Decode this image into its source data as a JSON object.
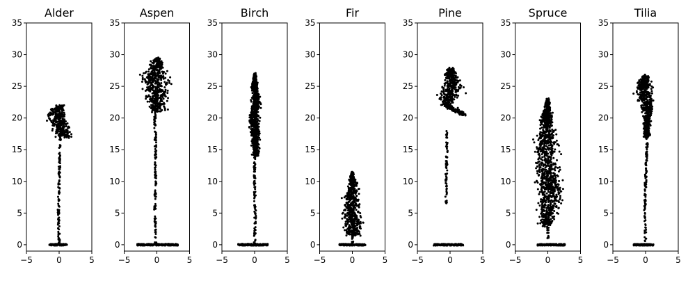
{
  "chart_data": [
    {
      "type": "scatter",
      "title": "Alder",
      "xlim": [
        -5,
        5
      ],
      "ylim": [
        -1,
        35
      ],
      "xticks": [
        -5,
        0,
        5
      ],
      "yticks": [
        0,
        5,
        10,
        15,
        20,
        25,
        30,
        35
      ],
      "point_color": "#000000",
      "profile": {
        "ground": {
          "x": [
            -1.5,
            1.2
          ],
          "y": 0
        },
        "trunk": [
          {
            "y": 0,
            "x": 0
          },
          {
            "y": 5,
            "x": -0.1
          },
          {
            "y": 10,
            "x": 0
          },
          {
            "y": 15,
            "x": 0.1
          },
          {
            "y": 17,
            "x": 0.2
          }
        ],
        "crown": [
          {
            "y": 17,
            "x": [
              -0.5,
              2.0
            ]
          },
          {
            "y": 18,
            "x": [
              -1.0,
              2.2
            ]
          },
          {
            "y": 19,
            "x": [
              -1.6,
              1.8
            ]
          },
          {
            "y": 20,
            "x": [
              -2.0,
              1.5
            ]
          },
          {
            "y": 21,
            "x": [
              -1.8,
              1.2
            ]
          },
          {
            "y": 22,
            "x": [
              -0.8,
              0.8
            ]
          }
        ]
      }
    },
    {
      "type": "scatter",
      "title": "Aspen",
      "xlim": [
        -5,
        5
      ],
      "ylim": [
        -1,
        35
      ],
      "xticks": [
        -5,
        0,
        5
      ],
      "yticks": [
        0,
        5,
        10,
        15,
        20,
        25,
        30,
        35
      ],
      "point_color": "#000000",
      "profile": {
        "ground": {
          "x": [
            -3.0,
            3.2
          ],
          "y": 0
        },
        "trunk": [
          {
            "y": 0,
            "x": -0.2
          },
          {
            "y": 5,
            "x": -0.3
          },
          {
            "y": 10,
            "x": -0.2
          },
          {
            "y": 15,
            "x": -0.2
          },
          {
            "y": 20,
            "x": -0.3
          },
          {
            "y": 22,
            "x": -0.3
          }
        ],
        "crown": [
          {
            "y": 21,
            "x": [
              -1.2,
              1.5
            ]
          },
          {
            "y": 23,
            "x": [
              -2.3,
              2.2
            ]
          },
          {
            "y": 25,
            "x": [
              -2.5,
              2.3
            ]
          },
          {
            "y": 27,
            "x": [
              -2.5,
              2.2
            ]
          },
          {
            "y": 28,
            "x": [
              -1.5,
              1.5
            ]
          },
          {
            "y": 29.5,
            "x": [
              -0.5,
              0.6
            ]
          }
        ]
      }
    },
    {
      "type": "scatter",
      "title": "Birch",
      "xlim": [
        -5,
        5
      ],
      "ylim": [
        -1,
        35
      ],
      "xticks": [
        -5,
        0,
        5
      ],
      "yticks": [
        0,
        5,
        10,
        15,
        20,
        25,
        30,
        35
      ],
      "point_color": "#000000",
      "profile": {
        "ground": {
          "x": [
            -2.5,
            2.0
          ],
          "y": 0
        },
        "trunk": [
          {
            "y": 0,
            "x": 0
          },
          {
            "y": 5,
            "x": 0.1
          },
          {
            "y": 10,
            "x": 0
          },
          {
            "y": 15,
            "x": 0
          },
          {
            "y": 20,
            "x": 0
          },
          {
            "y": 25,
            "x": 0
          },
          {
            "y": 27,
            "x": 0
          }
        ],
        "crown": [
          {
            "y": 14,
            "x": [
              -0.4,
              0.8
            ]
          },
          {
            "y": 18,
            "x": [
              -0.8,
              1.0
            ]
          },
          {
            "y": 20,
            "x": [
              -1.0,
              1.0
            ]
          },
          {
            "y": 23,
            "x": [
              -0.5,
              1.0
            ]
          },
          {
            "y": 25,
            "x": [
              -0.6,
              0.6
            ]
          },
          {
            "y": 27,
            "x": [
              -0.2,
              0.3
            ]
          }
        ]
      }
    },
    {
      "type": "scatter",
      "title": "Fir",
      "xlim": [
        -5,
        5
      ],
      "ylim": [
        -1,
        35
      ],
      "xticks": [
        -5,
        0,
        5
      ],
      "yticks": [
        0,
        5,
        10,
        15,
        20,
        25,
        30,
        35
      ],
      "point_color": "#000000",
      "profile": {
        "ground": {
          "x": [
            -2.0,
            2.0
          ],
          "y": 0
        },
        "trunk": [
          {
            "y": 0,
            "x": 0
          },
          {
            "y": 2,
            "x": 0
          }
        ],
        "crown": [
          {
            "y": 1.5,
            "x": [
              -1.2,
              1.5
            ]
          },
          {
            "y": 3,
            "x": [
              -1.9,
              2.0
            ]
          },
          {
            "y": 5,
            "x": [
              -1.6,
              1.6
            ]
          },
          {
            "y": 7,
            "x": [
              -1.6,
              1.3
            ]
          },
          {
            "y": 9,
            "x": [
              -1.0,
              1.0
            ]
          },
          {
            "y": 11.5,
            "x": [
              -0.2,
              0.2
            ]
          }
        ]
      }
    },
    {
      "type": "scatter",
      "title": "Pine",
      "xlim": [
        -5,
        5
      ],
      "ylim": [
        -1,
        35
      ],
      "xticks": [
        -5,
        0,
        5
      ],
      "yticks": [
        0,
        5,
        10,
        15,
        20,
        25,
        30,
        35
      ],
      "point_color": "#000000",
      "profile": {
        "ground": {
          "x": [
            -2.5,
            2.0
          ],
          "y": 0
        },
        "trunk": [
          {
            "y": 6.5,
            "x": -0.6
          },
          {
            "y": 10,
            "x": -0.6
          },
          {
            "y": 15,
            "x": -0.5
          },
          {
            "y": 18,
            "x": -0.5
          }
        ],
        "crown": [
          {
            "y": 20.5,
            "x": [
              1.5,
              3.2
            ]
          },
          {
            "y": 22,
            "x": [
              -1.5,
              0.3
            ]
          },
          {
            "y": 23.5,
            "x": [
              -2.3,
              2.0
            ]
          },
          {
            "y": 25,
            "x": [
              -1.5,
              2.5
            ]
          },
          {
            "y": 26.5,
            "x": [
              -1.2,
              1.5
            ]
          },
          {
            "y": 27.8,
            "x": [
              -0.5,
              0.8
            ]
          }
        ]
      }
    },
    {
      "type": "scatter",
      "title": "Spruce",
      "xlim": [
        -5,
        5
      ],
      "ylim": [
        -1,
        35
      ],
      "xticks": [
        -5,
        0,
        5
      ],
      "yticks": [
        0,
        5,
        10,
        15,
        20,
        25,
        30,
        35
      ],
      "point_color": "#000000",
      "profile": {
        "ground": {
          "x": [
            -1.6,
            2.6
          ],
          "y": 0
        },
        "trunk": [
          {
            "y": 1,
            "x": 0
          },
          {
            "y": 3,
            "x": 0
          }
        ],
        "crown": [
          {
            "y": 3,
            "x": [
              -1.5,
              0.8
            ]
          },
          {
            "y": 6,
            "x": [
              -2.0,
              2.5
            ]
          },
          {
            "y": 8,
            "x": [
              -2.0,
              2.6
            ]
          },
          {
            "y": 10,
            "x": [
              -1.8,
              2.5
            ]
          },
          {
            "y": 13,
            "x": [
              -2.2,
              2.0
            ]
          },
          {
            "y": 16,
            "x": [
              -2.3,
              1.8
            ]
          },
          {
            "y": 19,
            "x": [
              -1.5,
              1.2
            ]
          },
          {
            "y": 21,
            "x": [
              -1.0,
              0.8
            ]
          },
          {
            "y": 23,
            "x": [
              -0.3,
              0.3
            ]
          }
        ]
      }
    },
    {
      "type": "scatter",
      "title": "Tilia",
      "xlim": [
        -5,
        5
      ],
      "ylim": [
        -1,
        35
      ],
      "xticks": [
        -5,
        0,
        5
      ],
      "yticks": [
        0,
        5,
        10,
        15,
        20,
        25,
        30,
        35
      ],
      "point_color": "#000000",
      "profile": {
        "ground": {
          "x": [
            -1.8,
            1.2
          ],
          "y": 0
        },
        "trunk": [
          {
            "y": 0,
            "x": 0
          },
          {
            "y": 5,
            "x": -0.1
          },
          {
            "y": 10,
            "x": 0
          },
          {
            "y": 15,
            "x": 0.2
          },
          {
            "y": 20,
            "x": 0.3
          }
        ],
        "crown": [
          {
            "y": 17,
            "x": [
              -0.4,
              0.8
            ]
          },
          {
            "y": 20,
            "x": [
              -0.5,
              1.0
            ]
          },
          {
            "y": 22,
            "x": [
              -1.0,
              1.5
            ]
          },
          {
            "y": 24,
            "x": [
              -1.8,
              1.3
            ]
          },
          {
            "y": 25.5,
            "x": [
              -1.5,
              1.0
            ]
          },
          {
            "y": 26.7,
            "x": [
              -0.4,
              0.6
            ]
          }
        ]
      }
    }
  ]
}
